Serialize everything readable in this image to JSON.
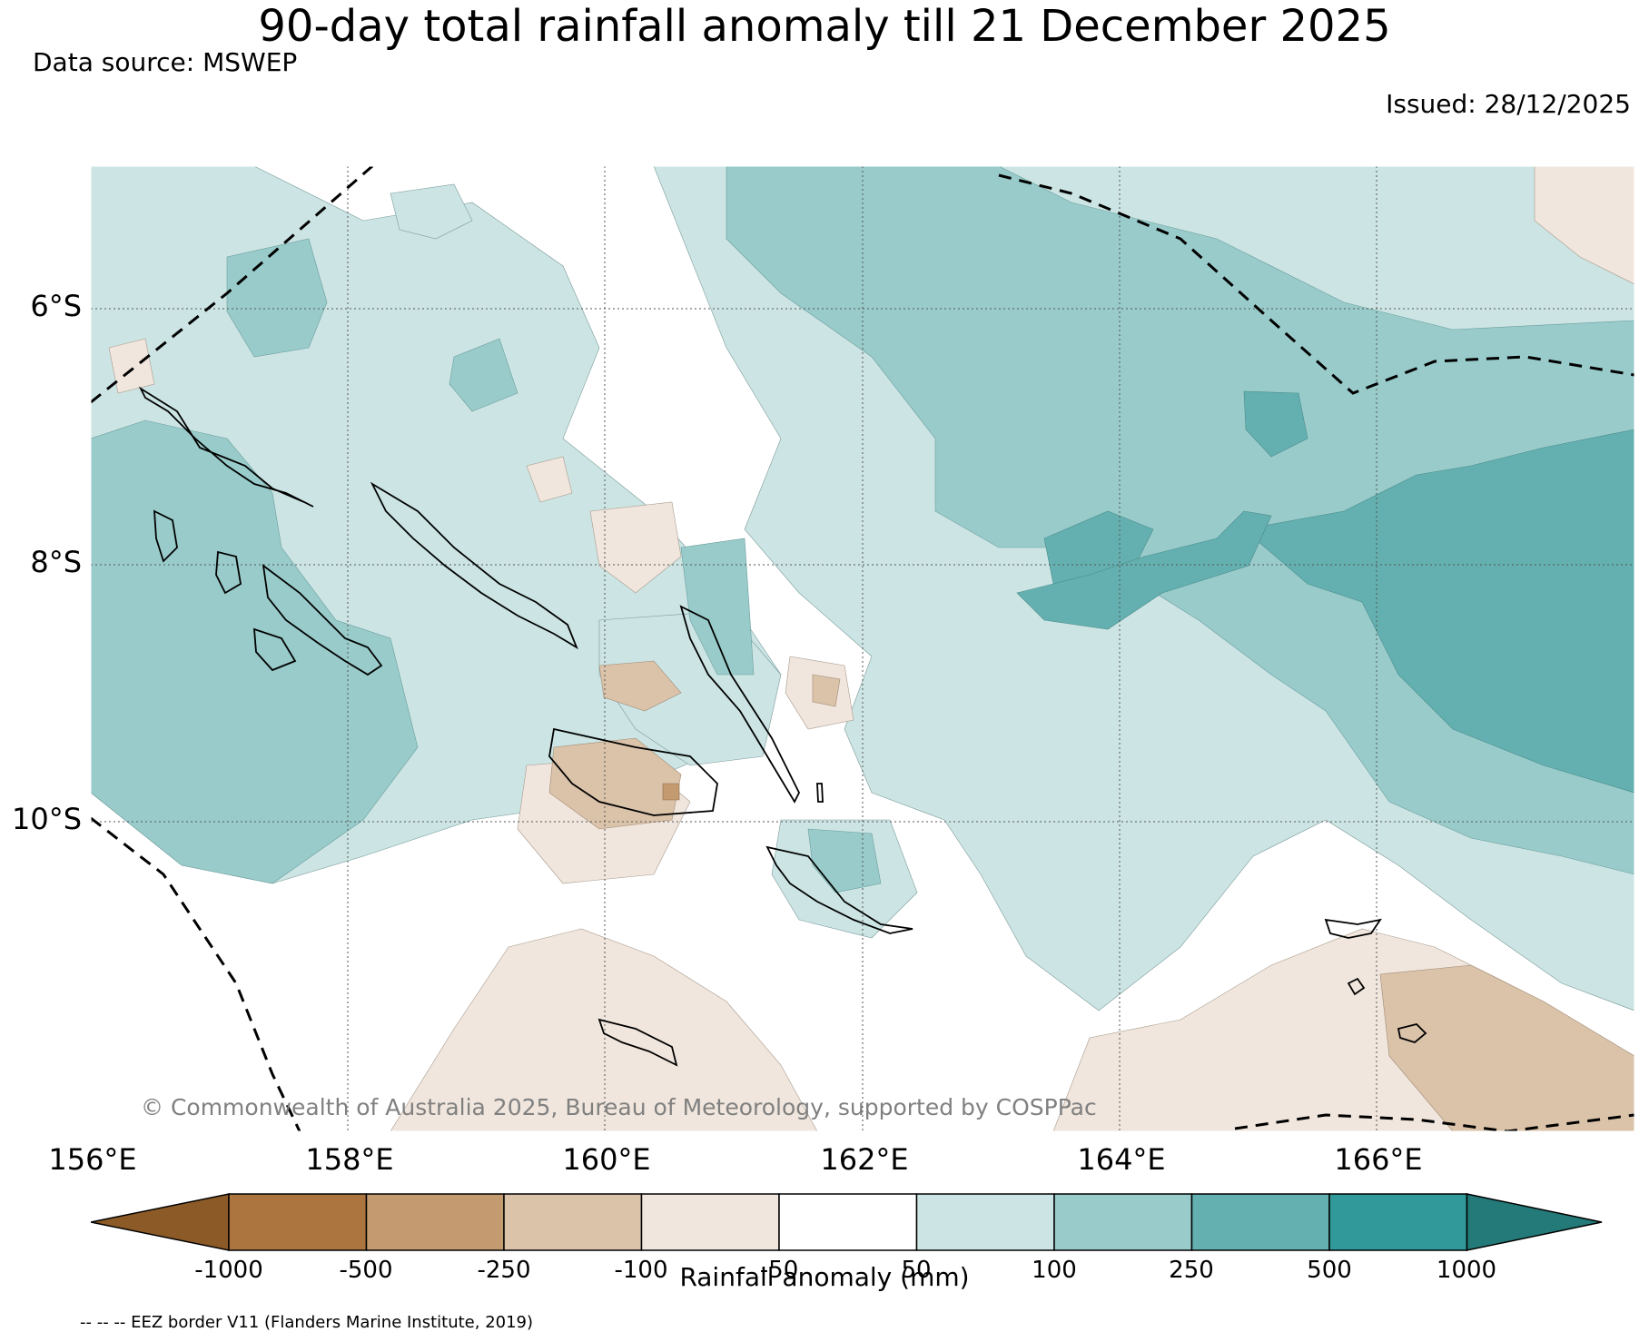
{
  "header": {
    "title": "90-day total rainfall anomaly till 21 December 2025",
    "data_source": "Data source: MSWEP",
    "issued": "Issued: 28/12/2025"
  },
  "map": {
    "lat_labels": [
      "6°S",
      "8°S",
      "10°S"
    ],
    "lon_labels": [
      "156°E",
      "158°E",
      "160°E",
      "162°E",
      "164°E",
      "166°E"
    ],
    "copyright": "© Commonwealth of Australia 2025, Bureau of Meteorology, supported by COSPPac",
    "extent": {
      "lon_min": 156,
      "lon_max": 168,
      "lat_min": -12.25,
      "lat_max": -4.9
    }
  },
  "colorbar": {
    "title": "Rainfall anomaly (mm)",
    "tick_labels": [
      "-1000",
      "-500",
      "-250",
      "-100",
      "-50",
      "50",
      "100",
      "250",
      "500",
      "1000"
    ],
    "colors": [
      "#8c5a27",
      "#ac7540",
      "#c49b71",
      "#dbc3aa",
      "#f0e6dd",
      "#ffffff",
      "#cce5e4",
      "#99cbcb",
      "#64b0b0",
      "#31999a",
      "#237a79"
    ]
  },
  "legend": {
    "eez_note": "-- -- -- EEZ border V11 (Flanders Marine Institute, 2019)"
  }
}
